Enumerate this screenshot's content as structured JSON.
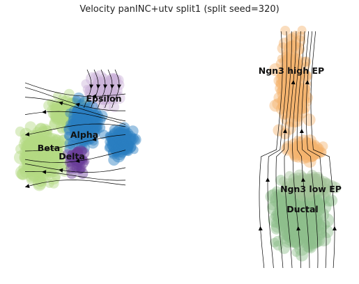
{
  "chart_data": {
    "type": "scatter",
    "subtype": "velocity-streamline-embedding",
    "title": "Velocity panINC+utv split1 (split seed=320)",
    "xlabel": "",
    "ylabel": "",
    "axes_visible": false,
    "grid": false,
    "legend": "none (on-data cluster labels)",
    "clusters": [
      {
        "name": "Ngn3 high EP",
        "color": "#f5b46e"
      },
      {
        "name": "Ngn3 low EP",
        "color": "#a3c49a"
      },
      {
        "name": "Ductal",
        "color": "#8fbe8c"
      },
      {
        "name": "Epsilon",
        "color": "#cbb3d9"
      },
      {
        "name": "Alpha",
        "color": "#2b7fc0"
      },
      {
        "name": "Beta",
        "color": "#b3da83"
      },
      {
        "name": "Delta",
        "color": "#6a3d9a"
      }
    ],
    "streamline_color": "#000000"
  }
}
